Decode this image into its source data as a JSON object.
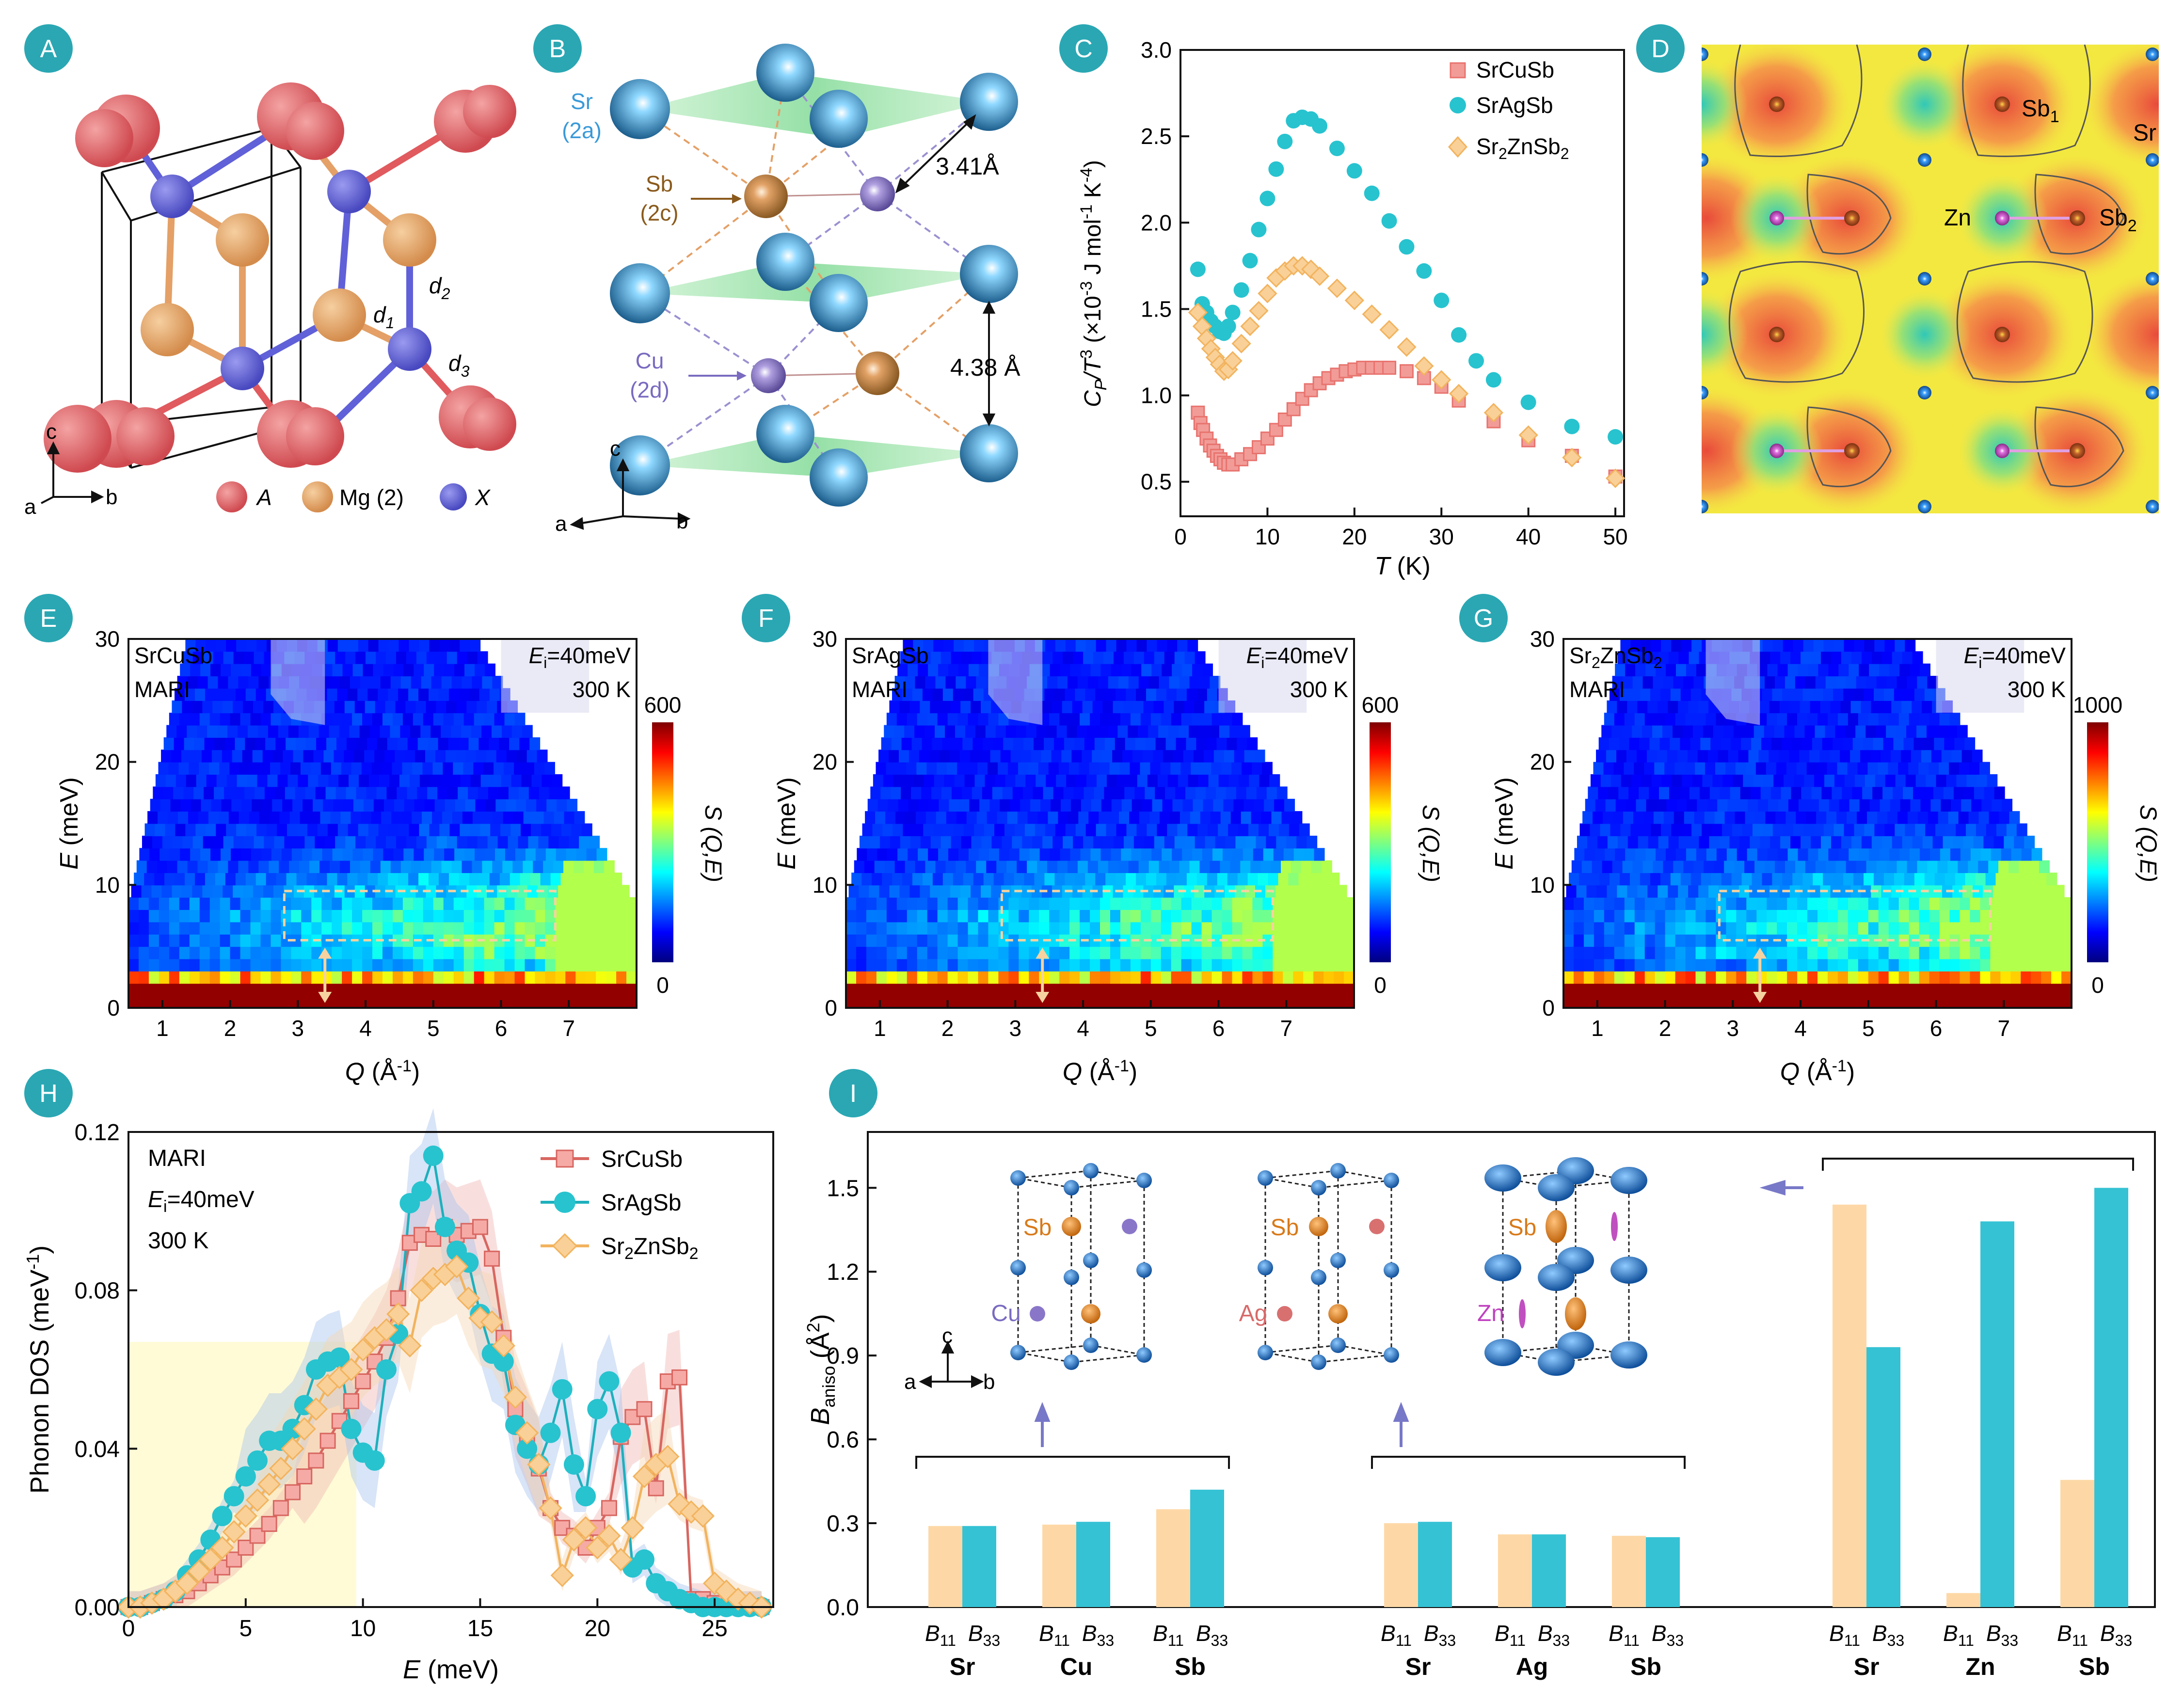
{
  "panel_letters": [
    "A",
    "B",
    "C",
    "D",
    "E",
    "F",
    "G",
    "H",
    "I"
  ],
  "colors": {
    "badge": "#2aa7b3",
    "srcusb": "#e8736e",
    "sragsb": "#27c3cf",
    "srznsb": "#f6c078",
    "atom_A": "#e05a5e",
    "atom_Mg": "#e4a066",
    "atom_X": "#6060d8",
    "atom_Sr": "#3a9ad8",
    "atom_Sb": "#c9803a",
    "atom_Cu": "#8a76c8",
    "highlight": "#fffbd6"
  },
  "panelA": {
    "legend": [
      "A",
      "Mg (2)",
      "X"
    ],
    "labels": {
      "d1": "d",
      "d1_sub": "1",
      "d2": "d",
      "d2_sub": "2",
      "d3": "d",
      "d3_sub": "3"
    },
    "axes": {
      "c": "c",
      "a": "a",
      "b": "b"
    }
  },
  "panelB": {
    "sr_label": "Sr",
    "sr_site": "(2a)",
    "sb_label": "Sb",
    "sb_site": "(2c)",
    "cu_label": "Cu",
    "cu_site": "(2d)",
    "dist1": "3.41Å",
    "dist2": "4.38 Å",
    "axes": {
      "c": "c",
      "a": "a",
      "b": "b"
    }
  },
  "panelC": {
    "xlabel": "T (K)",
    "ylabel": "C_P/T^3 (×10^-3 J mol^-1 K^-4)",
    "ylabel_parts": {
      "c": "C",
      "p": "P",
      "t": "/T",
      "three": "3",
      "mid": " (×10",
      "exp": "-3",
      "unit": " J mol",
      "exp2": "-1",
      "k": " K",
      "exp3": "-4",
      "close": ")"
    },
    "xticks": [
      "0",
      "10",
      "20",
      "30",
      "40",
      "50"
    ],
    "yticks": [
      "0.5",
      "1.0",
      "1.5",
      "2.0",
      "2.5",
      "3.0"
    ],
    "legend": [
      "SrCuSb",
      "SrAgSb",
      "Sr2ZnSb2"
    ],
    "legend_zn": {
      "pre": "Sr",
      "sub1": "2",
      "mid": "ZnSb",
      "sub2": "2"
    }
  },
  "panelD": {
    "labels": {
      "sb1": "Sb",
      "sb1_sub": "1",
      "sr": "Sr",
      "zn": "Zn",
      "sb2": "Sb",
      "sb2_sub": "2"
    }
  },
  "panelEFG": {
    "titles": [
      "SrCuSb",
      "SrAgSb",
      "Sr2ZnSb2"
    ],
    "zn_title": {
      "pre": "Sr",
      "sub1": "2",
      "mid": "ZnSb",
      "sub2": "2"
    },
    "instrument": "MARI",
    "ei_label": "E",
    "ei_sub": "i",
    "ei_value": "=40meV",
    "temp": "300 K",
    "cbar_max": [
      "600",
      "600",
      "1000"
    ],
    "cbar_min": "0",
    "cbar_label": "S (Q,E)",
    "xlabel": "Q (Å-1)",
    "xlabel_parts": {
      "q": "Q",
      "unit": " (Å",
      "exp": "-1",
      "close": ")"
    },
    "ylabel": "E (meV)",
    "ylabel_parts": {
      "e": "E",
      "unit": " (meV)"
    },
    "xticks": [
      "1",
      "2",
      "3",
      "4",
      "5",
      "6",
      "7"
    ],
    "yticks": [
      "0",
      "10",
      "20",
      "30"
    ]
  },
  "panelH": {
    "xlabel": "E (meV)",
    "ylabel": "Phonon DOS (meV-1)",
    "ylabel_parts": {
      "main": "Phonon DOS (meV",
      "exp": "-1",
      "close": ")"
    },
    "xlabel_parts": {
      "e": "E",
      "unit": " (meV)"
    },
    "xticks": [
      "0",
      "5",
      "10",
      "15",
      "20",
      "25"
    ],
    "yticks": [
      "0.00",
      "0.04",
      "0.08",
      "0.12"
    ],
    "info": {
      "instrument": "MARI",
      "ei": "E",
      "ei_sub": "i",
      "ei_val": "=40meV",
      "temp": "300 K"
    },
    "legend": [
      "SrCuSb",
      "SrAgSb",
      "Sr2ZnSb2"
    ]
  },
  "panelI": {
    "ylabel": "Baniso (Å2)",
    "ylabel_parts": {
      "b": "B",
      "sub": "aniso",
      "unit": " (Å",
      "exp": "2",
      "close": ")"
    },
    "yticks": [
      "0.0",
      "0.3",
      "0.6",
      "0.9",
      "1.2",
      "1.5"
    ],
    "groups": [
      {
        "elements": [
          "Sr",
          "Cu",
          "Sb"
        ],
        "atom_labels": [
          "Sb",
          "Cu"
        ]
      },
      {
        "elements": [
          "Sr",
          "Ag",
          "Sb"
        ],
        "atom_labels": [
          "Sb",
          "Ag"
        ]
      },
      {
        "elements": [
          "Sr",
          "Zn",
          "Sb"
        ],
        "atom_labels": [
          "Sb",
          "Zn"
        ]
      }
    ],
    "b11": "B",
    "b11_sub": "11",
    "b33": "B",
    "b33_sub": "33",
    "axes": {
      "c": "c",
      "a": "a",
      "b": "b"
    }
  },
  "chart_data": [
    {
      "type": "scatter",
      "xlabel": "T (K)",
      "ylabel": "C_P/T^3 (×10^-3 J mol^-1 K^-4)",
      "xlim": [
        0,
        51
      ],
      "ylim": [
        0.3,
        3.0
      ],
      "series": [
        {
          "name": "SrCuSb",
          "x": [
            2,
            2.3,
            2.6,
            3,
            3.4,
            3.8,
            4.2,
            4.6,
            5,
            5.5,
            6,
            7,
            8,
            9,
            10,
            11,
            12,
            13,
            14,
            15,
            16,
            17,
            18,
            19,
            20,
            21,
            22,
            23,
            24,
            26,
            28,
            30,
            32,
            36,
            40,
            45,
            50
          ],
          "y": [
            0.9,
            0.84,
            0.8,
            0.75,
            0.71,
            0.68,
            0.65,
            0.63,
            0.61,
            0.6,
            0.6,
            0.63,
            0.66,
            0.7,
            0.75,
            0.8,
            0.86,
            0.92,
            0.98,
            1.03,
            1.07,
            1.1,
            1.12,
            1.14,
            1.15,
            1.16,
            1.16,
            1.16,
            1.16,
            1.14,
            1.1,
            1.05,
            0.97,
            0.85,
            0.74,
            0.65,
            0.53
          ]
        },
        {
          "name": "SrAgSb",
          "x": [
            2,
            2.5,
            3,
            3.5,
            4,
            4.5,
            5,
            5.5,
            6,
            7,
            8,
            9,
            10,
            11,
            12,
            13,
            14,
            15,
            16,
            18,
            20,
            22,
            24,
            26,
            28,
            30,
            32,
            34,
            36,
            40,
            45,
            50
          ],
          "y": [
            1.73,
            1.53,
            1.48,
            1.43,
            1.4,
            1.37,
            1.36,
            1.4,
            1.48,
            1.61,
            1.78,
            1.96,
            2.14,
            2.31,
            2.47,
            2.59,
            2.61,
            2.6,
            2.56,
            2.43,
            2.3,
            2.17,
            2.01,
            1.86,
            1.72,
            1.55,
            1.35,
            1.2,
            1.09,
            0.96,
            0.82,
            0.76
          ]
        },
        {
          "name": "Sr2ZnSb2",
          "x": [
            2,
            2.5,
            3,
            3.5,
            4,
            4.5,
            5,
            5.5,
            6,
            7,
            8,
            9,
            10,
            11,
            12,
            13,
            14,
            15,
            16,
            18,
            20,
            22,
            24,
            26,
            28,
            30,
            32,
            36,
            40,
            45,
            50
          ],
          "y": [
            1.48,
            1.4,
            1.33,
            1.27,
            1.22,
            1.18,
            1.14,
            1.15,
            1.2,
            1.3,
            1.4,
            1.49,
            1.59,
            1.68,
            1.72,
            1.75,
            1.75,
            1.73,
            1.69,
            1.62,
            1.55,
            1.47,
            1.38,
            1.28,
            1.17,
            1.09,
            1.01,
            0.9,
            0.77,
            0.64,
            0.52
          ]
        }
      ]
    },
    {
      "type": "heatmap",
      "title": "SrCuSb",
      "xlabel": "Q (Å-1)",
      "ylabel": "E (meV)",
      "xlim": [
        0.5,
        8.0
      ],
      "ylim": [
        0,
        30
      ],
      "colorbar": [
        0,
        600
      ]
    },
    {
      "type": "heatmap",
      "title": "SrAgSb",
      "xlabel": "Q (Å-1)",
      "ylabel": "E (meV)",
      "xlim": [
        0.5,
        8.0
      ],
      "ylim": [
        0,
        30
      ],
      "colorbar": [
        0,
        600
      ]
    },
    {
      "type": "heatmap",
      "title": "Sr2ZnSb2",
      "xlabel": "Q (Å-1)",
      "ylabel": "E (meV)",
      "xlim": [
        0.5,
        8.0
      ],
      "ylim": [
        0,
        30
      ],
      "colorbar": [
        0,
        1000
      ]
    },
    {
      "type": "line",
      "xlabel": "E (meV)",
      "ylabel": "Phonon DOS (meV-1)",
      "xlim": [
        0,
        27.5
      ],
      "ylim": [
        0,
        0.12
      ],
      "series": [
        {
          "name": "SrCuSb",
          "x": [
            0,
            0.5,
            1,
            1.5,
            2,
            2.5,
            3,
            3.5,
            4,
            4.5,
            5,
            5.5,
            6,
            6.5,
            7,
            7.5,
            8,
            8.5,
            9,
            9.5,
            10,
            10.5,
            11,
            11.5,
            12,
            12.5,
            13,
            13.5,
            14,
            14.5,
            15,
            15.5,
            16,
            16.5,
            17,
            17.5,
            18,
            18.5,
            19,
            19.5,
            20,
            20.5,
            21,
            21.5,
            22,
            22.5,
            23,
            23.5,
            24,
            24.5,
            25,
            25.5,
            26,
            26.5,
            27
          ],
          "y": [
            0,
            0,
            0.001,
            0.002,
            0.003,
            0.004,
            0.006,
            0.008,
            0.01,
            0.012,
            0.015,
            0.018,
            0.021,
            0.025,
            0.029,
            0.033,
            0.037,
            0.042,
            0.047,
            0.052,
            0.057,
            0.062,
            0.068,
            0.078,
            0.092,
            0.094,
            0.093,
            0.096,
            0.094,
            0.095,
            0.096,
            0.088,
            0.068,
            0.05,
            0.043,
            0.035,
            0.025,
            0.02,
            0.018,
            0.015,
            0.02,
            0.025,
            0.043,
            0.048,
            0.05,
            0.03,
            0.057,
            0.058,
            0.002,
            0.002,
            0.001,
            0,
            0,
            0,
            0
          ]
        },
        {
          "name": "SrAgSb",
          "x": [
            0,
            0.5,
            1,
            1.5,
            2,
            2.5,
            3,
            3.5,
            4,
            4.5,
            5,
            5.5,
            6,
            6.5,
            7,
            7.5,
            8,
            8.5,
            9,
            9.5,
            10,
            10.5,
            11,
            11.5,
            12,
            12.5,
            13,
            13.5,
            14,
            14.5,
            15,
            15.5,
            16,
            16.5,
            17,
            17.5,
            18,
            18.5,
            19,
            19.5,
            20,
            20.5,
            21,
            21.5,
            22,
            22.5,
            23,
            23.5,
            24,
            24.5,
            25,
            25.5,
            26,
            26.5,
            27
          ],
          "y": [
            0,
            0,
            0.001,
            0.002,
            0.004,
            0.008,
            0.012,
            0.017,
            0.023,
            0.028,
            0.033,
            0.037,
            0.042,
            0.042,
            0.045,
            0.051,
            0.06,
            0.062,
            0.063,
            0.045,
            0.039,
            0.037,
            0.06,
            0.069,
            0.102,
            0.105,
            0.114,
            0.096,
            0.09,
            0.087,
            0.074,
            0.064,
            0.062,
            0.046,
            0.04,
            0.036,
            0.044,
            0.055,
            0.036,
            0.028,
            0.05,
            0.057,
            0.044,
            0.01,
            0.012,
            0.006,
            0.004,
            0.002,
            0.001,
            0,
            0,
            0,
            0,
            0,
            0
          ]
        },
        {
          "name": "Sr2ZnSb2",
          "x": [
            0,
            0.5,
            1,
            1.5,
            2,
            2.5,
            3,
            3.5,
            4,
            4.5,
            5,
            5.5,
            6,
            6.5,
            7,
            7.5,
            8,
            8.5,
            9,
            9.5,
            10,
            10.5,
            11,
            11.5,
            12,
            12.5,
            13,
            13.5,
            14,
            14.5,
            15,
            15.5,
            16,
            16.5,
            17,
            17.5,
            18,
            18.5,
            19,
            19.5,
            20,
            20.5,
            21,
            21.5,
            22,
            22.5,
            23,
            23.5,
            24,
            24.5,
            25,
            25.5,
            26,
            26.5,
            27
          ],
          "y": [
            0,
            0,
            0.001,
            0.002,
            0.004,
            0.006,
            0.009,
            0.012,
            0.015,
            0.019,
            0.023,
            0.027,
            0.031,
            0.035,
            0.04,
            0.045,
            0.05,
            0.056,
            0.058,
            0.06,
            0.065,
            0.068,
            0.07,
            0.074,
            0.066,
            0.08,
            0.083,
            0.084,
            0.086,
            0.078,
            0.073,
            0.072,
            0.066,
            0.053,
            0.044,
            0.036,
            0.025,
            0.008,
            0.017,
            0.02,
            0.015,
            0.018,
            0.012,
            0.02,
            0.033,
            0.036,
            0.038,
            0.026,
            0.024,
            0.023,
            0.006,
            0.004,
            0.002,
            0.001,
            0
          ]
        }
      ],
      "annotations": [
        "MARI",
        "Ei=40meV",
        "300 K"
      ],
      "highlight_region_x": [
        0,
        9.7
      ]
    },
    {
      "type": "bar",
      "ylabel": "Baniso (Å2)",
      "ylim": [
        0,
        1.7
      ],
      "categories": [
        "Sr",
        "Cu",
        "Sb",
        "Sr",
        "Ag",
        "Sb",
        "Sr",
        "Zn",
        "Sb"
      ],
      "series": [
        {
          "name": "B11",
          "values": [
            0.29,
            0.295,
            0.35,
            0.3,
            0.26,
            0.255,
            1.44,
            0.05,
            0.455
          ]
        },
        {
          "name": "B33",
          "values": [
            0.29,
            0.305,
            0.42,
            0.305,
            0.26,
            0.25,
            0.93,
            1.38,
            1.5
          ]
        }
      ]
    }
  ]
}
